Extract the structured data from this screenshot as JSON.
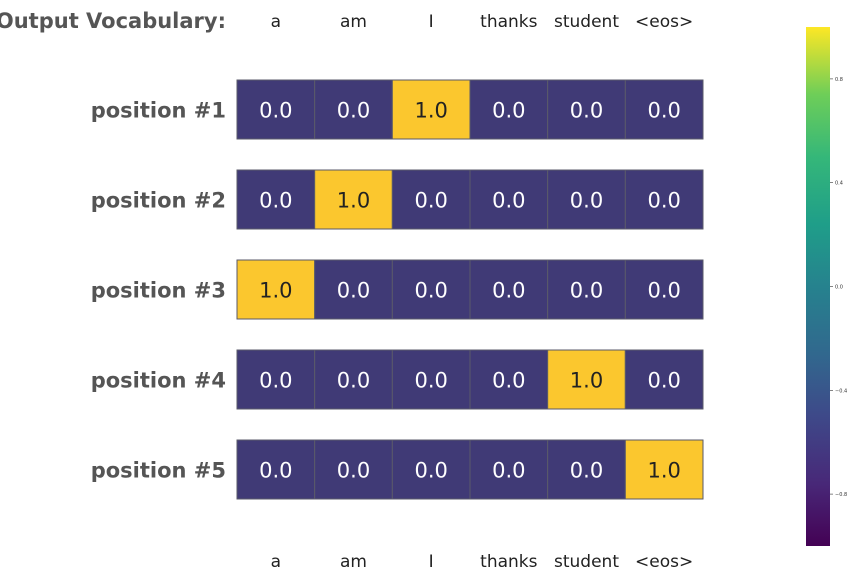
{
  "chart_data": {
    "type": "heatmap",
    "title": "Output Vocabulary:",
    "columns": [
      "a",
      "am",
      "I",
      "thanks",
      "student",
      "<eos>"
    ],
    "rows": [
      "position #1",
      "position #2",
      "position #3",
      "position #4",
      "position #5"
    ],
    "values": [
      [
        0.0,
        0.0,
        1.0,
        0.0,
        0.0,
        0.0
      ],
      [
        0.0,
        1.0,
        0.0,
        0.0,
        0.0,
        0.0
      ],
      [
        1.0,
        0.0,
        0.0,
        0.0,
        0.0,
        0.0
      ],
      [
        0.0,
        0.0,
        0.0,
        0.0,
        1.0,
        0.0
      ],
      [
        0.0,
        0.0,
        0.0,
        0.0,
        0.0,
        1.0
      ]
    ],
    "value_labels": [
      [
        "0.0",
        "0.0",
        "1.0",
        "0.0",
        "0.0",
        "0.0"
      ],
      [
        "0.0",
        "1.0",
        "0.0",
        "0.0",
        "0.0",
        "0.0"
      ],
      [
        "1.0",
        "0.0",
        "0.0",
        "0.0",
        "0.0",
        "0.0"
      ],
      [
        "0.0",
        "0.0",
        "0.0",
        "0.0",
        "1.0",
        "0.0"
      ],
      [
        "0.0",
        "0.0",
        "0.0",
        "0.0",
        "0.0",
        "1.0"
      ]
    ],
    "cell_colors": {
      "low": "#403a76",
      "high": "#fbc72e"
    },
    "text_colors": {
      "low": "#ffffff",
      "high": "#222222"
    },
    "colorbar": {
      "colormap": "viridis",
      "range": [
        -1.0,
        1.0
      ],
      "ticks": [
        0.8,
        0.4,
        0.0,
        -0.4,
        -0.8
      ],
      "tick_labels": [
        "0.8",
        "0.4",
        "0.0",
        "−0.4",
        "−0.8"
      ]
    }
  }
}
